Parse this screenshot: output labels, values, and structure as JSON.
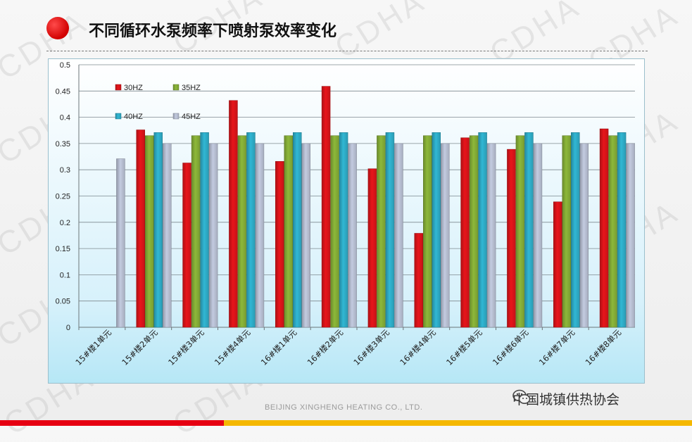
{
  "header": {
    "title": "不同循环水泵频率下喷射泵效率变化",
    "watermark": "CDHA"
  },
  "footer": {
    "company": "BEIJING XINGHENG HEATING CO., LTD.",
    "account_name": "中国城镇供热协会"
  },
  "colors": {
    "30HZ": "#e8151b",
    "35HZ": "#8db83a",
    "40HZ": "#31b7d4",
    "45HZ": "#c3cbe0",
    "accent_red": "#e60012",
    "accent_yellow": "#f5b800"
  },
  "chart_data": {
    "type": "bar",
    "categories": [
      "15#楼1单元",
      "15#楼2单元",
      "15#楼3单元",
      "15#楼4单元",
      "16#楼1单元",
      "16#楼2单元",
      "16#楼3单元",
      "16#楼4单元",
      "16#楼5单元",
      "16#楼6单元",
      "16#楼7单元",
      "16#楼8单元"
    ],
    "series": [
      {
        "name": "30HZ",
        "values": [
          null,
          0.376,
          0.313,
          0.432,
          0.316,
          0.459,
          0.302,
          0.179,
          0.361,
          0.339,
          0.239,
          0.378
        ]
      },
      {
        "name": "35HZ",
        "values": [
          null,
          0.365,
          0.365,
          0.365,
          0.365,
          0.365,
          0.365,
          0.365,
          0.365,
          0.365,
          0.365,
          0.365
        ]
      },
      {
        "name": "40HZ",
        "values": [
          null,
          0.371,
          0.371,
          0.371,
          0.371,
          0.371,
          0.371,
          0.371,
          0.371,
          0.371,
          0.371,
          0.371
        ]
      },
      {
        "name": "45HZ",
        "values": [
          0.321,
          0.35,
          0.35,
          0.35,
          0.35,
          0.35,
          0.35,
          0.35,
          0.35,
          0.35,
          0.35,
          0.35
        ]
      }
    ],
    "yticks": [
      "0",
      "0.05",
      "0.1",
      "0.15",
      "0.2",
      "0.25",
      "0.3",
      "0.35",
      "0.4",
      "0.45",
      "0.5"
    ],
    "ylim": [
      0,
      0.5
    ],
    "grid": true,
    "legend": "top-left"
  }
}
